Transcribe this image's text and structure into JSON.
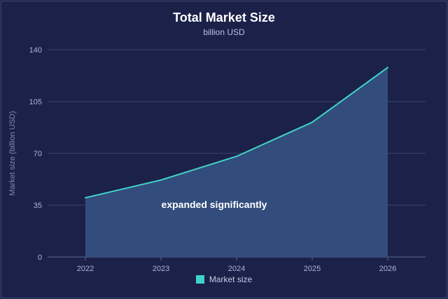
{
  "chart_data": {
    "type": "area",
    "title": "Total Market Size",
    "subtitle": "billion USD",
    "ylabel": "Market size (billion USD)",
    "xlabel": "",
    "categories": [
      "2022",
      "2023",
      "2024",
      "2025",
      "2026"
    ],
    "series": [
      {
        "name": "Market size",
        "values": [
          40,
          52,
          68,
          91,
          128
        ]
      }
    ],
    "ylim": [
      0,
      140
    ],
    "yticks": [
      0,
      35,
      70,
      105,
      140
    ],
    "grid": true,
    "legend": "bottom-center",
    "annotation": "expanded significantly",
    "colors": {
      "line": "#40d4c8",
      "fill": "#34507f",
      "background": "#1b2149",
      "grid": "#3a4573"
    }
  }
}
